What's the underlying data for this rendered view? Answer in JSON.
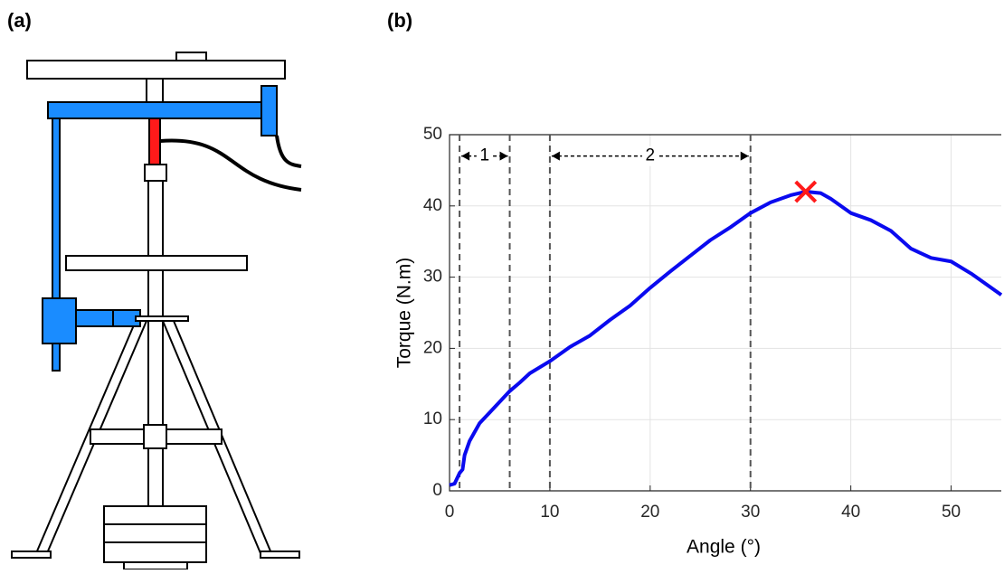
{
  "panels": {
    "a": "(a)",
    "b": "(b)"
  },
  "chart_data": {
    "type": "line",
    "xlabel": "Angle (°)",
    "ylabel": "Torque (N.m)",
    "x": [
      0,
      0.5,
      1,
      1.3,
      1.5,
      2,
      3,
      4,
      5,
      6,
      7,
      8,
      10,
      12,
      14,
      16,
      18,
      20,
      22,
      24,
      26,
      28,
      30,
      32,
      34,
      35.5,
      37,
      38,
      40,
      42,
      44,
      46,
      48,
      50,
      52,
      54,
      55
    ],
    "values": [
      0.8,
      1,
      2.5,
      3,
      5,
      7,
      9.5,
      11,
      12.5,
      14,
      15.2,
      16.5,
      18.2,
      20.2,
      21.8,
      24,
      26,
      28.5,
      30.8,
      33,
      35.2,
      37,
      39,
      40.5,
      41.5,
      42,
      41.8,
      41,
      39,
      38,
      36.5,
      34,
      32.7,
      32.2,
      30.5,
      28.5,
      27.5
    ],
    "color": "#0a0aef",
    "xlim": [
      0,
      55
    ],
    "ylim": [
      0,
      50
    ],
    "xticks": [
      0,
      10,
      20,
      30,
      40,
      50
    ],
    "yticks": [
      0,
      10,
      20,
      30,
      40,
      50
    ],
    "grid": true,
    "marker": {
      "x": 35.5,
      "y": 42,
      "color": "#ff1a1a"
    },
    "vlines": [
      1,
      6,
      10,
      30
    ],
    "spans": [
      {
        "label": "1",
        "from": 1,
        "to": 6,
        "y": 47
      },
      {
        "label": "2",
        "from": 10,
        "to": 30,
        "y": 47
      }
    ]
  }
}
